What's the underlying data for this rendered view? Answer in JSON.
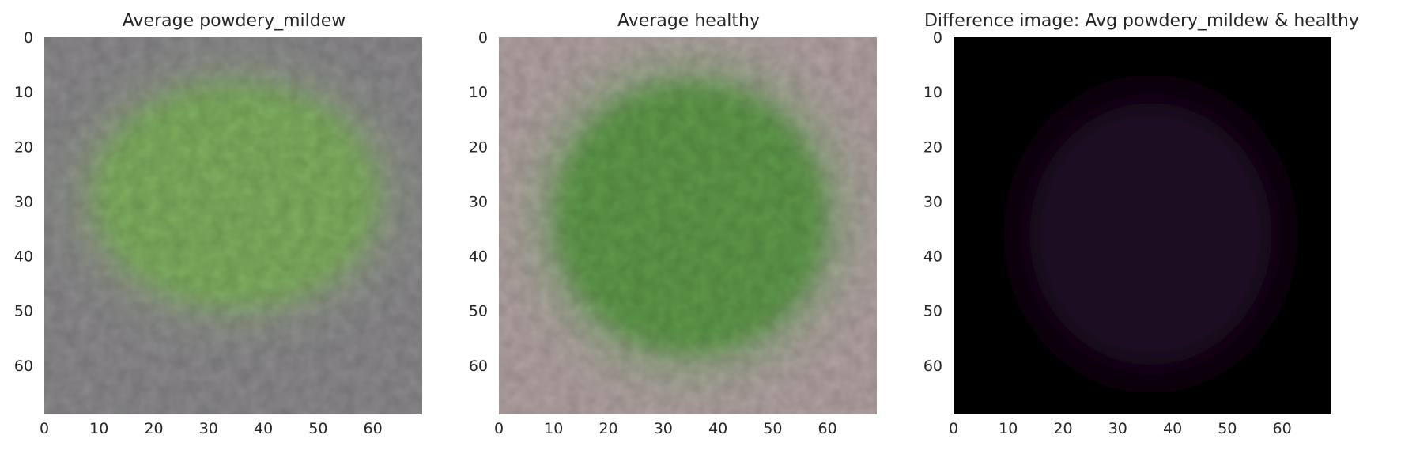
{
  "chart_data": [
    {
      "type": "heatmap",
      "title": "Average powdery_mildew",
      "xlabel": "",
      "ylabel": "",
      "xlim": [
        0,
        69
      ],
      "ylim": [
        69,
        0
      ],
      "x_ticks": [
        0,
        10,
        20,
        30,
        40,
        50,
        60
      ],
      "y_ticks": [
        0,
        10,
        20,
        30,
        40,
        50,
        60
      ],
      "grid": false,
      "image": {
        "background": "#8c8a8d",
        "leaf_color": "#7fb05e",
        "leaf_edge_color": "#8e9a85",
        "leaf_center": [
          35,
          29
        ],
        "leaf_radius": [
          28,
          22
        ]
      }
    },
    {
      "type": "heatmap",
      "title": "Average healthy",
      "xlabel": "",
      "ylabel": "",
      "xlim": [
        0,
        69
      ],
      "ylim": [
        69,
        0
      ],
      "x_ticks": [
        0,
        10,
        20,
        30,
        40,
        50,
        60
      ],
      "y_ticks": [
        0,
        10,
        20,
        30,
        40,
        50,
        60
      ],
      "grid": false,
      "image": {
        "background": "#b3a4a3",
        "leaf_color": "#5e9a48",
        "leaf_edge_color": "#9aa68c",
        "leaf_center": [
          35,
          33
        ],
        "leaf_radius": [
          27,
          27
        ]
      }
    },
    {
      "type": "heatmap",
      "title": "Difference image: Avg powdery_mildew & healthy",
      "xlabel": "",
      "ylabel": "",
      "xlim": [
        0,
        69
      ],
      "ylim": [
        69,
        0
      ],
      "x_ticks": [
        0,
        10,
        20,
        30,
        40,
        50,
        60
      ],
      "y_ticks": [
        0,
        10,
        20,
        30,
        40,
        50,
        60
      ],
      "grid": false,
      "image": {
        "background": "#000000",
        "leaf_color": "#1d1122",
        "leaf_edge_color": "#080509",
        "leaf_center": [
          36,
          36
        ],
        "leaf_radius": [
          24,
          26
        ]
      }
    }
  ]
}
